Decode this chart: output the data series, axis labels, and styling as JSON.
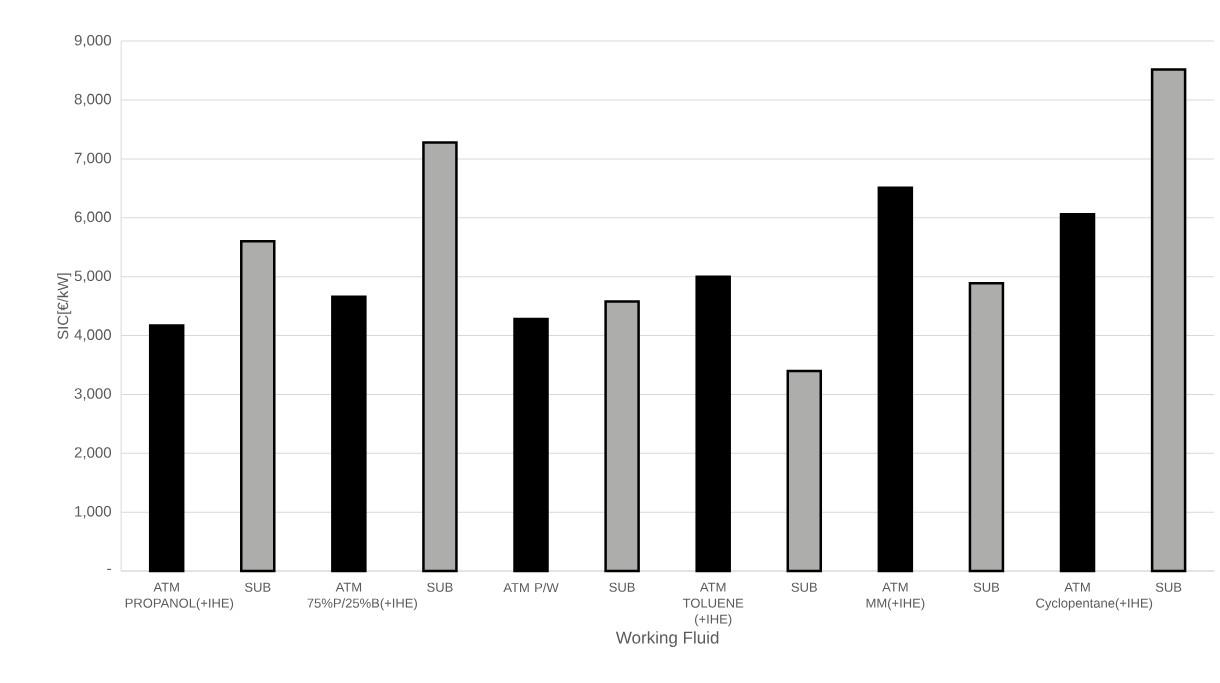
{
  "chart_data": {
    "type": "bar",
    "xlabel": "Working Fluid",
    "ylabel": "SIC[€/kW]",
    "categories": [
      "ATM PROPANOL(+IHE)",
      "SUB",
      "ATM 75%P/25%B(+IHE)",
      "SUB",
      "ATM P/W",
      "SUB",
      "ATM TOLUENE (+IHE)",
      "SUB",
      "ATM MM(+IHE)",
      "SUB",
      "ATM Cyclopentane(+IHE)",
      "SUB"
    ],
    "values": [
      4170,
      5600,
      4660,
      7280,
      4280,
      4580,
      5000,
      3400,
      6510,
      4890,
      6060,
      8520
    ],
    "colors": [
      "#000000",
      "#adadab",
      "#000000",
      "#adadab",
      "#000000",
      "#adadab",
      "#000000",
      "#adadab",
      "#000000",
      "#adadab",
      "#000000",
      "#adadab"
    ],
    "ylim": [
      0,
      9000
    ],
    "yticks": [
      {
        "value": 0,
        "label": "-"
      },
      {
        "value": 1000,
        "label": "1,000"
      },
      {
        "value": 2000,
        "label": "2,000"
      },
      {
        "value": 3000,
        "label": "3,000"
      },
      {
        "value": 4000,
        "label": "4,000"
      },
      {
        "value": 5000,
        "label": "5,000"
      },
      {
        "value": 6000,
        "label": "6,000"
      },
      {
        "value": 7000,
        "label": "7,000"
      },
      {
        "value": 8000,
        "label": "8,000"
      },
      {
        "value": 9000,
        "label": "9,000"
      }
    ],
    "grid": "y"
  }
}
